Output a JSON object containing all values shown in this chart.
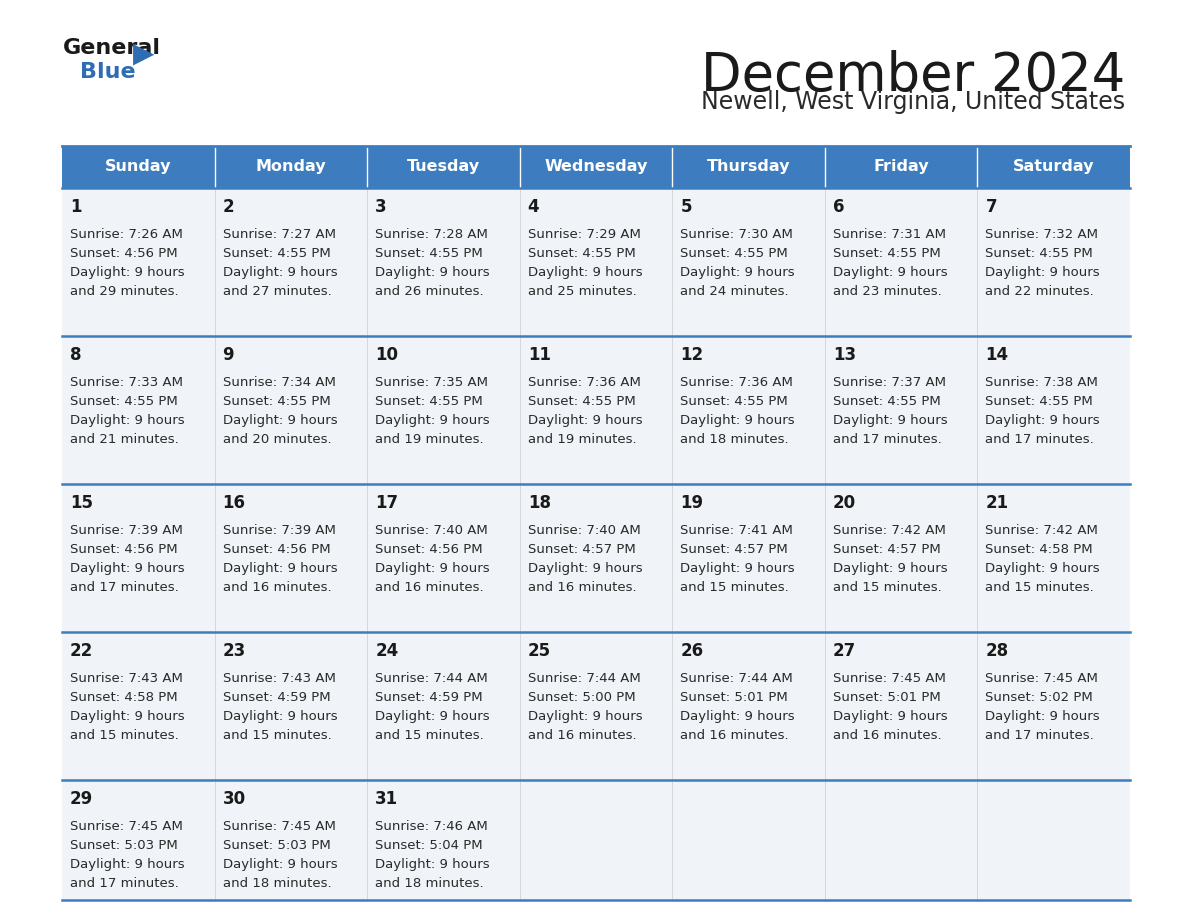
{
  "title": "December 2024",
  "subtitle": "Newell, West Virginia, United States",
  "days_of_week": [
    "Sunday",
    "Monday",
    "Tuesday",
    "Wednesday",
    "Thursday",
    "Friday",
    "Saturday"
  ],
  "header_bg": "#3d7dbf",
  "header_text": "#ffffff",
  "cell_bg": "#f0f3f7",
  "cell_bg_last": "#f0f3f7",
  "border_color": "#3d7dbf",
  "day_num_color": "#1a1a1a",
  "cell_text_color": "#2a2a2a",
  "title_color": "#1a1a1a",
  "subtitle_color": "#2a2a2a",
  "logo_black": "#1a1a1a",
  "logo_blue": "#2e6db4",
  "calendar_data": [
    [
      {
        "day": 1,
        "sunrise": "7:26 AM",
        "sunset": "4:56 PM",
        "dl1": "Daylight: 9 hours",
        "dl2": "and 29 minutes."
      },
      {
        "day": 2,
        "sunrise": "7:27 AM",
        "sunset": "4:55 PM",
        "dl1": "Daylight: 9 hours",
        "dl2": "and 27 minutes."
      },
      {
        "day": 3,
        "sunrise": "7:28 AM",
        "sunset": "4:55 PM",
        "dl1": "Daylight: 9 hours",
        "dl2": "and 26 minutes."
      },
      {
        "day": 4,
        "sunrise": "7:29 AM",
        "sunset": "4:55 PM",
        "dl1": "Daylight: 9 hours",
        "dl2": "and 25 minutes."
      },
      {
        "day": 5,
        "sunrise": "7:30 AM",
        "sunset": "4:55 PM",
        "dl1": "Daylight: 9 hours",
        "dl2": "and 24 minutes."
      },
      {
        "day": 6,
        "sunrise": "7:31 AM",
        "sunset": "4:55 PM",
        "dl1": "Daylight: 9 hours",
        "dl2": "and 23 minutes."
      },
      {
        "day": 7,
        "sunrise": "7:32 AM",
        "sunset": "4:55 PM",
        "dl1": "Daylight: 9 hours",
        "dl2": "and 22 minutes."
      }
    ],
    [
      {
        "day": 8,
        "sunrise": "7:33 AM",
        "sunset": "4:55 PM",
        "dl1": "Daylight: 9 hours",
        "dl2": "and 21 minutes."
      },
      {
        "day": 9,
        "sunrise": "7:34 AM",
        "sunset": "4:55 PM",
        "dl1": "Daylight: 9 hours",
        "dl2": "and 20 minutes."
      },
      {
        "day": 10,
        "sunrise": "7:35 AM",
        "sunset": "4:55 PM",
        "dl1": "Daylight: 9 hours",
        "dl2": "and 19 minutes."
      },
      {
        "day": 11,
        "sunrise": "7:36 AM",
        "sunset": "4:55 PM",
        "dl1": "Daylight: 9 hours",
        "dl2": "and 19 minutes."
      },
      {
        "day": 12,
        "sunrise": "7:36 AM",
        "sunset": "4:55 PM",
        "dl1": "Daylight: 9 hours",
        "dl2": "and 18 minutes."
      },
      {
        "day": 13,
        "sunrise": "7:37 AM",
        "sunset": "4:55 PM",
        "dl1": "Daylight: 9 hours",
        "dl2": "and 17 minutes."
      },
      {
        "day": 14,
        "sunrise": "7:38 AM",
        "sunset": "4:55 PM",
        "dl1": "Daylight: 9 hours",
        "dl2": "and 17 minutes."
      }
    ],
    [
      {
        "day": 15,
        "sunrise": "7:39 AM",
        "sunset": "4:56 PM",
        "dl1": "Daylight: 9 hours",
        "dl2": "and 17 minutes."
      },
      {
        "day": 16,
        "sunrise": "7:39 AM",
        "sunset": "4:56 PM",
        "dl1": "Daylight: 9 hours",
        "dl2": "and 16 minutes."
      },
      {
        "day": 17,
        "sunrise": "7:40 AM",
        "sunset": "4:56 PM",
        "dl1": "Daylight: 9 hours",
        "dl2": "and 16 minutes."
      },
      {
        "day": 18,
        "sunrise": "7:40 AM",
        "sunset": "4:57 PM",
        "dl1": "Daylight: 9 hours",
        "dl2": "and 16 minutes."
      },
      {
        "day": 19,
        "sunrise": "7:41 AM",
        "sunset": "4:57 PM",
        "dl1": "Daylight: 9 hours",
        "dl2": "and 15 minutes."
      },
      {
        "day": 20,
        "sunrise": "7:42 AM",
        "sunset": "4:57 PM",
        "dl1": "Daylight: 9 hours",
        "dl2": "and 15 minutes."
      },
      {
        "day": 21,
        "sunrise": "7:42 AM",
        "sunset": "4:58 PM",
        "dl1": "Daylight: 9 hours",
        "dl2": "and 15 minutes."
      }
    ],
    [
      {
        "day": 22,
        "sunrise": "7:43 AM",
        "sunset": "4:58 PM",
        "dl1": "Daylight: 9 hours",
        "dl2": "and 15 minutes."
      },
      {
        "day": 23,
        "sunrise": "7:43 AM",
        "sunset": "4:59 PM",
        "dl1": "Daylight: 9 hours",
        "dl2": "and 15 minutes."
      },
      {
        "day": 24,
        "sunrise": "7:44 AM",
        "sunset": "4:59 PM",
        "dl1": "Daylight: 9 hours",
        "dl2": "and 15 minutes."
      },
      {
        "day": 25,
        "sunrise": "7:44 AM",
        "sunset": "5:00 PM",
        "dl1": "Daylight: 9 hours",
        "dl2": "and 16 minutes."
      },
      {
        "day": 26,
        "sunrise": "7:44 AM",
        "sunset": "5:01 PM",
        "dl1": "Daylight: 9 hours",
        "dl2": "and 16 minutes."
      },
      {
        "day": 27,
        "sunrise": "7:45 AM",
        "sunset": "5:01 PM",
        "dl1": "Daylight: 9 hours",
        "dl2": "and 16 minutes."
      },
      {
        "day": 28,
        "sunrise": "7:45 AM",
        "sunset": "5:02 PM",
        "dl1": "Daylight: 9 hours",
        "dl2": "and 17 minutes."
      }
    ],
    [
      {
        "day": 29,
        "sunrise": "7:45 AM",
        "sunset": "5:03 PM",
        "dl1": "Daylight: 9 hours",
        "dl2": "and 17 minutes."
      },
      {
        "day": 30,
        "sunrise": "7:45 AM",
        "sunset": "5:03 PM",
        "dl1": "Daylight: 9 hours",
        "dl2": "and 18 minutes."
      },
      {
        "day": 31,
        "sunrise": "7:46 AM",
        "sunset": "5:04 PM",
        "dl1": "Daylight: 9 hours",
        "dl2": "and 18 minutes."
      },
      null,
      null,
      null,
      null
    ]
  ]
}
